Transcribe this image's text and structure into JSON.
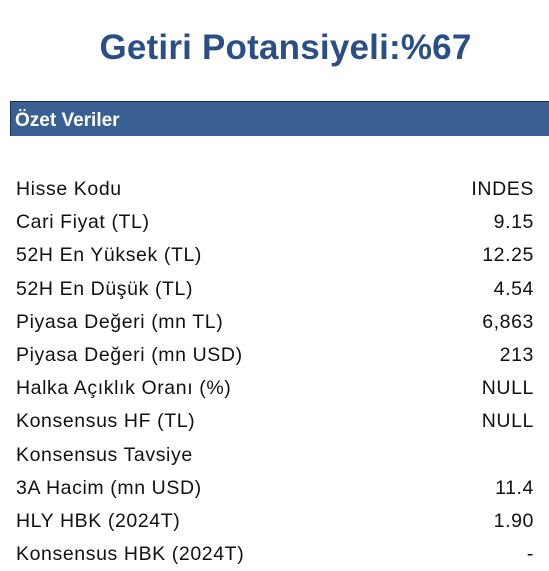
{
  "title": "Getiri Potansiyeli:%67",
  "section": {
    "header": "Özet Veriler"
  },
  "rows": [
    {
      "label": "Hisse Kodu",
      "value": "INDES"
    },
    {
      "label": "Cari Fiyat (TL)",
      "value": "9.15"
    },
    {
      "label": "52H En Yüksek (TL)",
      "value": "12.25"
    },
    {
      "label": "52H En Düşük (TL)",
      "value": "4.54"
    },
    {
      "label": "Piyasa Değeri (mn TL)",
      "value": "6,863"
    },
    {
      "label": "Piyasa Değeri (mn USD)",
      "value": "213"
    },
    {
      "label": "Halka Açıklık Oranı (%)",
      "value": "NULL"
    },
    {
      "label": "Konsensus HF (TL)",
      "value": "NULL"
    },
    {
      "label": "Konsensus Tavsiye",
      "value": ""
    },
    {
      "label": "3A Hacim (mn USD)",
      "value": "11.4"
    },
    {
      "label": "HLY HBK (2024T)",
      "value": "1.90"
    },
    {
      "label": "Konsensus HBK (2024T)",
      "value": "-"
    }
  ]
}
